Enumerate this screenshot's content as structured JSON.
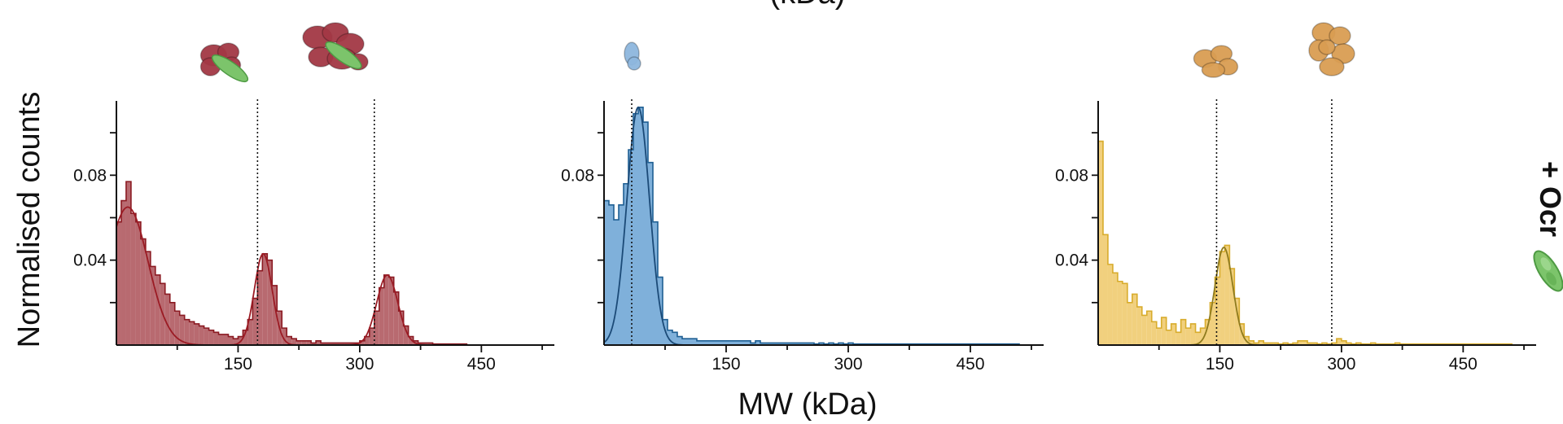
{
  "figure": {
    "top_title": "(kDa)",
    "ylabel": "Normalised counts",
    "xlabel": "MW (kDa)",
    "side_label": "+ Ocr"
  },
  "chart_data": [
    {
      "type": "bar",
      "panel": "left",
      "color": "#b86a70",
      "edge_color": "#8b1a22",
      "fit_color": "#9b1b24",
      "xlim": [
        0,
        540
      ],
      "ylim": [
        0,
        0.115
      ],
      "xticks": [
        150,
        300,
        450
      ],
      "yticks": [
        0.04,
        0.08
      ],
      "reference_lines_kda": [
        174,
        318
      ],
      "bin_width_kda": 6,
      "bins": [
        {
          "x": 0,
          "y": 0.058
        },
        {
          "x": 6,
          "y": 0.068
        },
        {
          "x": 12,
          "y": 0.077
        },
        {
          "x": 18,
          "y": 0.062
        },
        {
          "x": 24,
          "y": 0.058
        },
        {
          "x": 30,
          "y": 0.05
        },
        {
          "x": 36,
          "y": 0.044
        },
        {
          "x": 42,
          "y": 0.037
        },
        {
          "x": 48,
          "y": 0.033
        },
        {
          "x": 54,
          "y": 0.029
        },
        {
          "x": 60,
          "y": 0.024
        },
        {
          "x": 66,
          "y": 0.02
        },
        {
          "x": 72,
          "y": 0.016
        },
        {
          "x": 78,
          "y": 0.014
        },
        {
          "x": 84,
          "y": 0.012
        },
        {
          "x": 90,
          "y": 0.011
        },
        {
          "x": 96,
          "y": 0.01
        },
        {
          "x": 102,
          "y": 0.009
        },
        {
          "x": 108,
          "y": 0.008
        },
        {
          "x": 114,
          "y": 0.007
        },
        {
          "x": 120,
          "y": 0.006
        },
        {
          "x": 126,
          "y": 0.005
        },
        {
          "x": 132,
          "y": 0.005
        },
        {
          "x": 138,
          "y": 0.004
        },
        {
          "x": 144,
          "y": 0.003
        },
        {
          "x": 150,
          "y": 0.004
        },
        {
          "x": 156,
          "y": 0.007
        },
        {
          "x": 162,
          "y": 0.012
        },
        {
          "x": 168,
          "y": 0.022
        },
        {
          "x": 174,
          "y": 0.035
        },
        {
          "x": 180,
          "y": 0.043
        },
        {
          "x": 186,
          "y": 0.04
        },
        {
          "x": 192,
          "y": 0.028
        },
        {
          "x": 198,
          "y": 0.016
        },
        {
          "x": 204,
          "y": 0.008
        },
        {
          "x": 210,
          "y": 0.004
        },
        {
          "x": 216,
          "y": 0.003
        },
        {
          "x": 222,
          "y": 0.002
        },
        {
          "x": 228,
          "y": 0.002
        },
        {
          "x": 234,
          "y": 0.002
        },
        {
          "x": 240,
          "y": 0.001
        },
        {
          "x": 246,
          "y": 0.002
        },
        {
          "x": 252,
          "y": 0.001
        },
        {
          "x": 258,
          "y": 0.001
        },
        {
          "x": 264,
          "y": 0.001
        },
        {
          "x": 270,
          "y": 0.001
        },
        {
          "x": 276,
          "y": 0.001
        },
        {
          "x": 282,
          "y": 0.001
        },
        {
          "x": 288,
          "y": 0.001
        },
        {
          "x": 294,
          "y": 0.001
        },
        {
          "x": 300,
          "y": 0.002
        },
        {
          "x": 306,
          "y": 0.004
        },
        {
          "x": 312,
          "y": 0.008
        },
        {
          "x": 318,
          "y": 0.016
        },
        {
          "x": 324,
          "y": 0.027
        },
        {
          "x": 330,
          "y": 0.033
        },
        {
          "x": 336,
          "y": 0.032
        },
        {
          "x": 342,
          "y": 0.025
        },
        {
          "x": 348,
          "y": 0.016
        },
        {
          "x": 354,
          "y": 0.009
        },
        {
          "x": 360,
          "y": 0.004
        },
        {
          "x": 366,
          "y": 0.002
        },
        {
          "x": 372,
          "y": 0.001
        },
        {
          "x": 378,
          "y": 0.001
        },
        {
          "x": 384,
          "y": 0.001
        },
        {
          "x": 390,
          "y": 0.0005
        },
        {
          "x": 396,
          "y": 0.0005
        },
        {
          "x": 402,
          "y": 0.0005
        },
        {
          "x": 408,
          "y": 0.0005
        },
        {
          "x": 414,
          "y": 0.0005
        },
        {
          "x": 420,
          "y": 0.0005
        },
        {
          "x": 426,
          "y": 0.0005
        }
      ],
      "fits": [
        {
          "mean": 14,
          "sigma": 25,
          "amplitude": 0.065,
          "range": [
            0,
            160
          ]
        },
        {
          "mean": 181,
          "sigma": 11,
          "amplitude": 0.043,
          "range": [
            130,
            240
          ]
        },
        {
          "mean": 334,
          "sigma": 13,
          "amplitude": 0.033,
          "range": [
            280,
            400
          ]
        }
      ],
      "structures": [
        {
          "kind": "ocr-complex-monomer",
          "x_kda": 130,
          "body_color": "#a23844",
          "bound_color": "#7cc46b"
        },
        {
          "kind": "ocr-complex-dimer",
          "x_kda": 270,
          "body_color": "#a23844",
          "bound_color": "#7cc46b"
        }
      ]
    },
    {
      "type": "bar",
      "panel": "middle",
      "color": "#7fb0da",
      "edge_color": "#1f5f93",
      "fit_color": "#1b4a77",
      "xlim": [
        0,
        540
      ],
      "ylim": [
        0,
        0.115
      ],
      "xticks": [
        150,
        300,
        450
      ],
      "yticks": [
        0.08
      ],
      "reference_lines_kda": [
        34
      ],
      "bin_width_kda": 6,
      "bins": [
        {
          "x": 0,
          "y": 0.068
        },
        {
          "x": 6,
          "y": 0.066
        },
        {
          "x": 12,
          "y": 0.059
        },
        {
          "x": 18,
          "y": 0.066
        },
        {
          "x": 24,
          "y": 0.076
        },
        {
          "x": 30,
          "y": 0.092
        },
        {
          "x": 36,
          "y": 0.109
        },
        {
          "x": 42,
          "y": 0.112
        },
        {
          "x": 48,
          "y": 0.105
        },
        {
          "x": 54,
          "y": 0.086
        },
        {
          "x": 60,
          "y": 0.058
        },
        {
          "x": 66,
          "y": 0.032
        },
        {
          "x": 72,
          "y": 0.012
        },
        {
          "x": 78,
          "y": 0.007
        },
        {
          "x": 84,
          "y": 0.006
        },
        {
          "x": 90,
          "y": 0.004
        },
        {
          "x": 96,
          "y": 0.003
        },
        {
          "x": 102,
          "y": 0.003
        },
        {
          "x": 108,
          "y": 0.003
        },
        {
          "x": 114,
          "y": 0.002
        },
        {
          "x": 120,
          "y": 0.002
        },
        {
          "x": 126,
          "y": 0.002
        },
        {
          "x": 132,
          "y": 0.002
        },
        {
          "x": 138,
          "y": 0.002
        },
        {
          "x": 144,
          "y": 0.002
        },
        {
          "x": 150,
          "y": 0.002
        },
        {
          "x": 156,
          "y": 0.002
        },
        {
          "x": 162,
          "y": 0.002
        },
        {
          "x": 168,
          "y": 0.002
        },
        {
          "x": 174,
          "y": 0.002
        },
        {
          "x": 180,
          "y": 0.001
        },
        {
          "x": 186,
          "y": 0.002
        },
        {
          "x": 192,
          "y": 0.001
        },
        {
          "x": 198,
          "y": 0.001
        },
        {
          "x": 204,
          "y": 0.001
        },
        {
          "x": 210,
          "y": 0.001
        },
        {
          "x": 216,
          "y": 0.001
        },
        {
          "x": 222,
          "y": 0.001
        },
        {
          "x": 228,
          "y": 0.001
        },
        {
          "x": 234,
          "y": 0.001
        },
        {
          "x": 240,
          "y": 0.001
        },
        {
          "x": 246,
          "y": 0.001
        },
        {
          "x": 252,
          "y": 0.001
        },
        {
          "x": 258,
          "y": 0.0005
        },
        {
          "x": 264,
          "y": 0.001
        },
        {
          "x": 270,
          "y": 0.0005
        },
        {
          "x": 276,
          "y": 0.001
        },
        {
          "x": 282,
          "y": 0.0005
        },
        {
          "x": 288,
          "y": 0.001
        },
        {
          "x": 294,
          "y": 0.0005
        },
        {
          "x": 300,
          "y": 0.001
        },
        {
          "x": 306,
          "y": 0.0005
        },
        {
          "x": 312,
          "y": 0.0005
        },
        {
          "x": 318,
          "y": 0.0005
        },
        {
          "x": 324,
          "y": 0.0005
        },
        {
          "x": 330,
          "y": 0.0005
        },
        {
          "x": 336,
          "y": 0.0005
        },
        {
          "x": 342,
          "y": 0.0005
        },
        {
          "x": 348,
          "y": 0.0005
        },
        {
          "x": 354,
          "y": 0.0005
        },
        {
          "x": 360,
          "y": 0.0005
        },
        {
          "x": 366,
          "y": 0.0005
        },
        {
          "x": 372,
          "y": 0.0005
        },
        {
          "x": 378,
          "y": 0.0005
        },
        {
          "x": 384,
          "y": 0.0005
        },
        {
          "x": 390,
          "y": 0.0005
        },
        {
          "x": 396,
          "y": 0.0005
        },
        {
          "x": 402,
          "y": 0.0005
        },
        {
          "x": 408,
          "y": 0.0005
        },
        {
          "x": 414,
          "y": 0.0005
        },
        {
          "x": 420,
          "y": 0.0005
        },
        {
          "x": 426,
          "y": 0.0005
        },
        {
          "x": 432,
          "y": 0.0005
        },
        {
          "x": 438,
          "y": 0.0005
        },
        {
          "x": 444,
          "y": 0.0005
        },
        {
          "x": 450,
          "y": 0.0005
        },
        {
          "x": 456,
          "y": 0.0005
        },
        {
          "x": 462,
          "y": 0.0005
        },
        {
          "x": 468,
          "y": 0.0005
        },
        {
          "x": 474,
          "y": 0.0005
        },
        {
          "x": 480,
          "y": 0.0005
        },
        {
          "x": 486,
          "y": 0.0005
        },
        {
          "x": 492,
          "y": 0.0005
        },
        {
          "x": 498,
          "y": 0.0005
        },
        {
          "x": 504,
          "y": 0.0005
        }
      ],
      "fits": [
        {
          "mean": 42,
          "sigma": 14,
          "amplitude": 0.112,
          "range": [
            0,
            110
          ]
        }
      ],
      "structures": [
        {
          "kind": "small-monomer",
          "x_kda": 34,
          "body_color": "#8db6dd",
          "bound_color": "#8db6dd"
        }
      ]
    },
    {
      "type": "bar",
      "panel": "right",
      "color": "#f1d07e",
      "edge_color": "#d8ac2c",
      "fit_color": "#8f7b1e",
      "xlim": [
        0,
        540
      ],
      "ylim": [
        0,
        0.115
      ],
      "xticks": [
        150,
        300,
        450
      ],
      "yticks": [
        0.04,
        0.08
      ],
      "reference_lines_kda": [
        146,
        288
      ],
      "bin_width_kda": 6,
      "bins": [
        {
          "x": 0,
          "y": 0.096
        },
        {
          "x": 6,
          "y": 0.052
        },
        {
          "x": 12,
          "y": 0.038
        },
        {
          "x": 18,
          "y": 0.034
        },
        {
          "x": 24,
          "y": 0.03
        },
        {
          "x": 30,
          "y": 0.029
        },
        {
          "x": 36,
          "y": 0.02
        },
        {
          "x": 42,
          "y": 0.024
        },
        {
          "x": 48,
          "y": 0.018
        },
        {
          "x": 54,
          "y": 0.014
        },
        {
          "x": 60,
          "y": 0.016
        },
        {
          "x": 66,
          "y": 0.011
        },
        {
          "x": 72,
          "y": 0.008
        },
        {
          "x": 78,
          "y": 0.013
        },
        {
          "x": 84,
          "y": 0.007
        },
        {
          "x": 90,
          "y": 0.01
        },
        {
          "x": 96,
          "y": 0.006
        },
        {
          "x": 102,
          "y": 0.012
        },
        {
          "x": 108,
          "y": 0.008
        },
        {
          "x": 114,
          "y": 0.01
        },
        {
          "x": 120,
          "y": 0.006
        },
        {
          "x": 126,
          "y": 0.008
        },
        {
          "x": 132,
          "y": 0.012
        },
        {
          "x": 138,
          "y": 0.02
        },
        {
          "x": 144,
          "y": 0.032
        },
        {
          "x": 150,
          "y": 0.044
        },
        {
          "x": 156,
          "y": 0.047
        },
        {
          "x": 162,
          "y": 0.036
        },
        {
          "x": 168,
          "y": 0.022
        },
        {
          "x": 174,
          "y": 0.01
        },
        {
          "x": 180,
          "y": 0.004
        },
        {
          "x": 186,
          "y": 0.002
        },
        {
          "x": 192,
          "y": 0.001
        },
        {
          "x": 198,
          "y": 0.002
        },
        {
          "x": 204,
          "y": 0.001
        },
        {
          "x": 210,
          "y": 0.001
        },
        {
          "x": 216,
          "y": 0.001
        },
        {
          "x": 222,
          "y": 0.0005
        },
        {
          "x": 228,
          "y": 0.001
        },
        {
          "x": 234,
          "y": 0.0005
        },
        {
          "x": 240,
          "y": 0.001
        },
        {
          "x": 246,
          "y": 0.002
        },
        {
          "x": 252,
          "y": 0.002
        },
        {
          "x": 258,
          "y": 0.001
        },
        {
          "x": 264,
          "y": 0.001
        },
        {
          "x": 270,
          "y": 0.0005
        },
        {
          "x": 276,
          "y": 0.001
        },
        {
          "x": 282,
          "y": 0.0005
        },
        {
          "x": 288,
          "y": 0.001
        },
        {
          "x": 294,
          "y": 0.003
        },
        {
          "x": 300,
          "y": 0.002
        },
        {
          "x": 306,
          "y": 0.001
        },
        {
          "x": 312,
          "y": 0.0005
        },
        {
          "x": 318,
          "y": 0.001
        },
        {
          "x": 324,
          "y": 0.0005
        },
        {
          "x": 330,
          "y": 0.0005
        },
        {
          "x": 336,
          "y": 0.001
        },
        {
          "x": 342,
          "y": 0.0005
        },
        {
          "x": 348,
          "y": 0.0005
        },
        {
          "x": 354,
          "y": 0.0005
        },
        {
          "x": 360,
          "y": 0.0005
        },
        {
          "x": 366,
          "y": 0.001
        },
        {
          "x": 372,
          "y": 0.0005
        },
        {
          "x": 378,
          "y": 0.0005
        },
        {
          "x": 384,
          "y": 0.0005
        },
        {
          "x": 390,
          "y": 0.0005
        },
        {
          "x": 396,
          "y": 0.0005
        },
        {
          "x": 402,
          "y": 0.0005
        },
        {
          "x": 408,
          "y": 0.0005
        },
        {
          "x": 414,
          "y": 0.0005
        },
        {
          "x": 420,
          "y": 0.0005
        },
        {
          "x": 426,
          "y": 0.0005
        },
        {
          "x": 432,
          "y": 0.0005
        },
        {
          "x": 438,
          "y": 0.0005
        },
        {
          "x": 444,
          "y": 0.0005
        },
        {
          "x": 450,
          "y": 0.0005
        },
        {
          "x": 456,
          "y": 0.0005
        },
        {
          "x": 462,
          "y": 0.0005
        },
        {
          "x": 468,
          "y": 0.0005
        },
        {
          "x": 474,
          "y": 0.0005
        },
        {
          "x": 480,
          "y": 0.0005
        },
        {
          "x": 486,
          "y": 0.0005
        },
        {
          "x": 492,
          "y": 0.0005
        },
        {
          "x": 498,
          "y": 0.0005
        },
        {
          "x": 504,
          "y": 0.0005
        }
      ],
      "fits": [
        {
          "mean": 155,
          "sigma": 11,
          "amplitude": 0.046,
          "range": [
            100,
            210
          ]
        }
      ],
      "structures": [
        {
          "kind": "tetramer-small",
          "x_kda": 146,
          "body_color": "#d99d52",
          "bound_color": "#d99d52"
        },
        {
          "kind": "tetramer-large",
          "x_kda": 288,
          "body_color": "#d99d52",
          "bound_color": "#d99d52"
        }
      ]
    }
  ]
}
